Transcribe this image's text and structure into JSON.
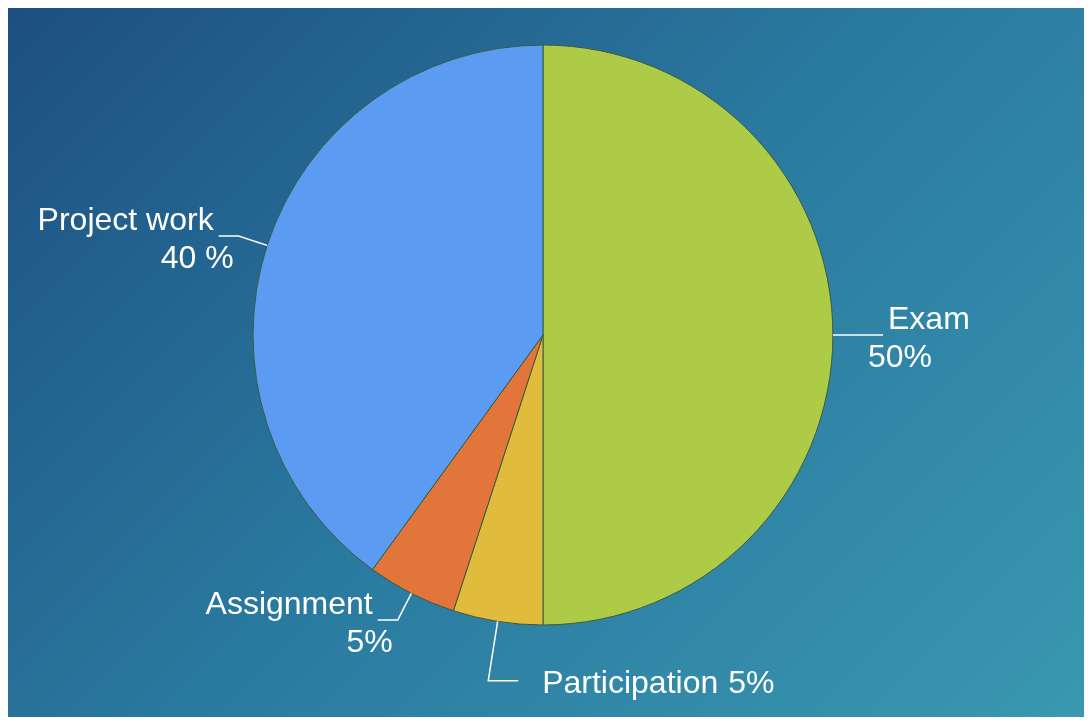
{
  "chart_data": {
    "type": "pie",
    "categories": [
      "Exam",
      "Participation",
      "Assignment",
      "Project work"
    ],
    "values": [
      50,
      5,
      5,
      40
    ],
    "value_labels": [
      "50%",
      "5%",
      "5%",
      "40 %"
    ],
    "colors": [
      "#aecb48",
      "#e0bb3c",
      "#e2763a",
      "#5b9cf2"
    ]
  }
}
